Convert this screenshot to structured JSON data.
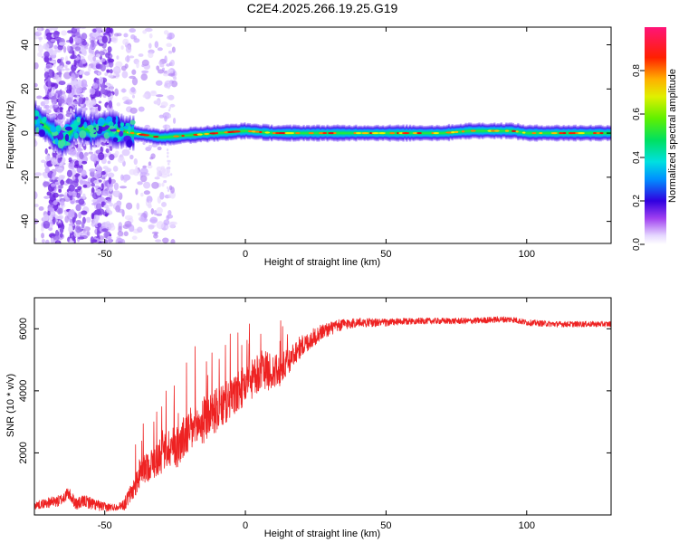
{
  "title": "C2E4.2025.266.19.25.G19",
  "chart_data": [
    {
      "type": "heatmap",
      "name": "spectrogram",
      "xlabel": "Height of straight line (km)",
      "ylabel": "Frequency (Hz)",
      "xlim": [
        -75,
        130
      ],
      "ylim": [
        -50,
        48
      ],
      "xticks": [
        -50,
        0,
        50,
        100
      ],
      "yticks": [
        -40,
        -20,
        0,
        20,
        40
      ],
      "xtick_labels": [
        "-50",
        "0",
        "50",
        "100"
      ],
      "ytick_labels": [
        "-40",
        "-20",
        "0",
        "20",
        "40"
      ],
      "colorbar": {
        "label": "Normalized spectral amplitude",
        "range": [
          0,
          1
        ],
        "ticks": [
          0.0,
          0.2,
          0.4,
          0.6,
          0.8
        ],
        "tick_labels": [
          "0.0",
          "0.2",
          "0.4",
          "0.6",
          "0.8"
        ]
      },
      "ridge_center_hz": [
        {
          "x": -75,
          "f": 7
        },
        {
          "x": -70,
          "f": 2
        },
        {
          "x": -65,
          "f": -4
        },
        {
          "x": -60,
          "f": 4
        },
        {
          "x": -55,
          "f": 1
        },
        {
          "x": -50,
          "f": 3
        },
        {
          "x": -45,
          "f": 1
        },
        {
          "x": -40,
          "f": 0
        },
        {
          "x": -35,
          "f": -1
        },
        {
          "x": -30,
          "f": -2
        },
        {
          "x": -20,
          "f": -1
        },
        {
          "x": -10,
          "f": 0
        },
        {
          "x": 0,
          "f": 1
        },
        {
          "x": 10,
          "f": 0
        },
        {
          "x": 30,
          "f": 0
        },
        {
          "x": 50,
          "f": 0
        },
        {
          "x": 70,
          "f": 0
        },
        {
          "x": 80,
          "f": 1
        },
        {
          "x": 95,
          "f": 1
        },
        {
          "x": 100,
          "f": 0
        },
        {
          "x": 115,
          "f": 0
        },
        {
          "x": 130,
          "f": 0
        }
      ]
    },
    {
      "type": "line",
      "name": "snr",
      "xlabel": "Height of straight line (km)",
      "ylabel": "SNR (10 * v/v)",
      "xlim": [
        -75,
        130
      ],
      "ylim": [
        0,
        7000
      ],
      "xticks": [
        -50,
        0,
        50,
        100
      ],
      "yticks": [
        2000,
        4000,
        6000
      ],
      "xtick_labels": [
        "-50",
        "0",
        "50",
        "100"
      ],
      "ytick_labels": [
        "2000",
        "4000",
        "6000"
      ],
      "color": "#ee2222",
      "envelope": {
        "x": [
          -75,
          -70,
          -66,
          -63,
          -60,
          -57,
          -54,
          -50,
          -46,
          -43,
          -40,
          -37,
          -34,
          -30,
          -27,
          -24,
          -21,
          -18,
          -15,
          -12,
          -9,
          -6,
          -3,
          0,
          3,
          6,
          9,
          12,
          15,
          18,
          21,
          24,
          27,
          30,
          35,
          40,
          45,
          50,
          60,
          70,
          80,
          90,
          95,
          100,
          110,
          120,
          130
        ],
        "y": [
          300,
          400,
          450,
          700,
          350,
          450,
          350,
          250,
          250,
          350,
          800,
          1400,
          1600,
          1900,
          2200,
          2200,
          2600,
          2800,
          3000,
          3300,
          3400,
          3700,
          3900,
          4200,
          4400,
          4700,
          4600,
          4600,
          4900,
          5300,
          5500,
          5700,
          5900,
          6000,
          6150,
          6200,
          6200,
          6200,
          6250,
          6250,
          6250,
          6300,
          6300,
          6200,
          6150,
          6150,
          6150
        ]
      },
      "noise": {
        "x": [
          -75,
          -65,
          -55,
          -45,
          -40,
          -30,
          -20,
          -10,
          0,
          10,
          20,
          30,
          40,
          60,
          90,
          130
        ],
        "amplitude": [
          250,
          400,
          400,
          200,
          700,
          1200,
          1500,
          1400,
          1300,
          1200,
          700,
          450,
          300,
          200,
          200,
          180
        ]
      }
    }
  ]
}
